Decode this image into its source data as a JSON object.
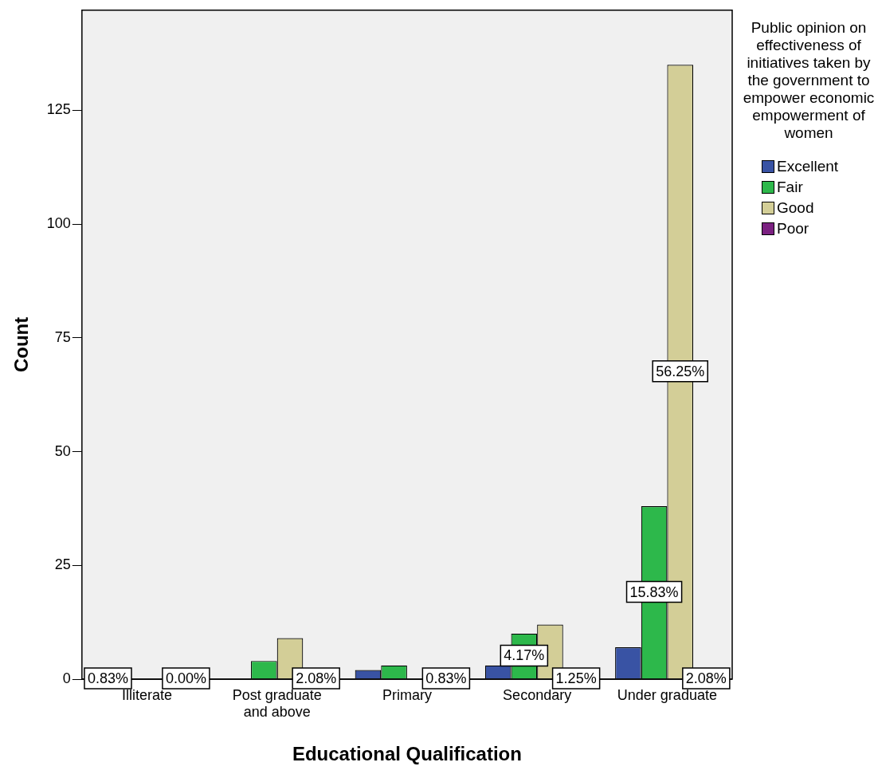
{
  "chart_data": {
    "type": "bar",
    "xlabel": "Educational Qualification",
    "ylabel": "Count",
    "legend_title": "Public opinion on effectiveness of initiatives taken by the government to empower economic empowerment of women",
    "categories": [
      "Illiterate",
      "Post graduate and above",
      "Primary",
      "Secondary",
      "Under graduate"
    ],
    "series": [
      {
        "name": "Excellent",
        "color": "#3953a4",
        "values": [
          0,
          0,
          2,
          3,
          7
        ]
      },
      {
        "name": "Fair",
        "color": "#2db84b",
        "values": [
          0,
          4,
          3,
          10,
          38
        ]
      },
      {
        "name": "Good",
        "color": "#d3ce97",
        "values": [
          0,
          9,
          0,
          12,
          135
        ]
      },
      {
        "name": "Poor",
        "color": "#7b2181",
        "values": [
          0,
          0,
          0,
          0,
          0
        ]
      }
    ],
    "annotations": [
      {
        "text": "0.00%",
        "x": "Illiterate",
        "y": 0
      },
      {
        "text": "0.83%",
        "x": "Illiterate",
        "y": 0
      },
      {
        "text": "2.08%",
        "x": "Post graduate and above",
        "y": 0
      },
      {
        "text": "0.83%",
        "x": "Primary",
        "y": 0
      },
      {
        "text": "4.17%",
        "x": "Secondary",
        "y": 5
      },
      {
        "text": "1.25%",
        "x": "Secondary",
        "y": 0
      },
      {
        "text": "15.83%",
        "x": "Under graduate",
        "y": 19
      },
      {
        "text": "56.25%",
        "x": "Under graduate",
        "y": 67.5
      },
      {
        "text": "2.08%",
        "x": "Under graduate",
        "y": 0
      }
    ],
    "ylim": [
      0,
      147
    ],
    "yticks": [
      0,
      25,
      50,
      75,
      100,
      125
    ],
    "grid": false,
    "legend": "right"
  }
}
